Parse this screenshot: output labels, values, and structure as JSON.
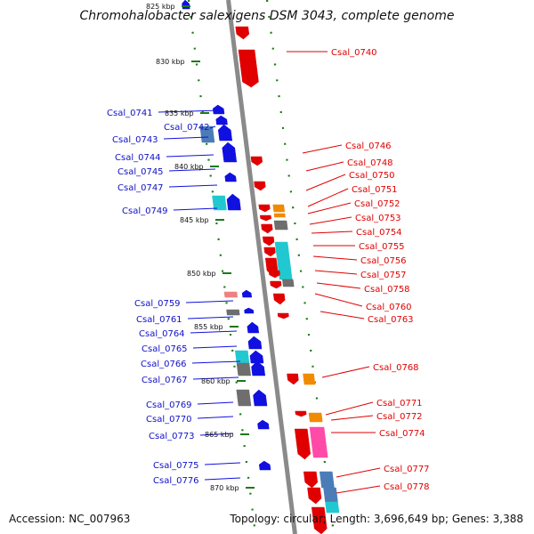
{
  "header": {
    "title": "Chromohalobacter salexigens DSM 3043, complete genome"
  },
  "footer": {
    "accession": "Accession: NC_007963",
    "topology": "Topology: circular; Length: 3,696,649 bp; Genes: 3,388"
  },
  "map": {
    "backbone_color": "#8a8a8a",
    "tick_color": "#1a7a1a",
    "kbp_labels": [
      "825 kbp",
      "830 kbp",
      "835 kbp",
      "840 kbp",
      "845 kbp",
      "850 kbp",
      "855 kbp",
      "860 kbp",
      "865 kbp",
      "870 kbp"
    ],
    "forward_strand_genes": [
      "Csal_0740",
      "Csal_0746",
      "Csal_0748",
      "Csal_0750",
      "Csal_0751",
      "Csal_0752",
      "Csal_0753",
      "Csal_0754",
      "Csal_0755",
      "Csal_0756",
      "Csal_0757",
      "Csal_0758",
      "Csal_0760",
      "Csal_0763",
      "Csal_0768",
      "Csal_0771",
      "Csal_0772",
      "Csal_0774",
      "Csal_0777",
      "Csal_0778"
    ],
    "reverse_strand_genes": [
      "Csal_0741",
      "Csal_0742",
      "Csal_0743",
      "Csal_0744",
      "Csal_0745",
      "Csal_0747",
      "Csal_0749",
      "Csal_0759",
      "Csal_0761",
      "Csal_0764",
      "Csal_0765",
      "Csal_0766",
      "Csal_0767",
      "Csal_0769",
      "Csal_0770",
      "Csal_0773",
      "Csal_0775",
      "Csal_0776"
    ],
    "colors": {
      "forward_gene": "#e00000",
      "reverse_gene": "#1010e0",
      "grey_feature": "#6e6e6e",
      "cyan_feature": "#22c8d0",
      "orange_feature": "#f08a00",
      "steelblue_feature": "#4a7cb8",
      "pink_feature": "#ff4aa8",
      "salmon_feature": "#f08080"
    }
  }
}
